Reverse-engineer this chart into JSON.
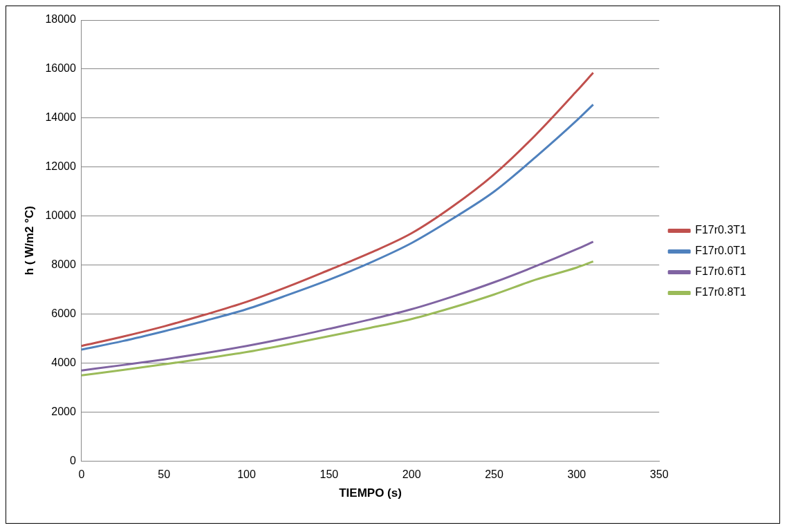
{
  "chart_data": {
    "type": "line",
    "xlabel": "TIEMPO (s)",
    "ylabel": "h ( W/m2 °C)",
    "x": [
      0,
      25,
      50,
      75,
      100,
      125,
      150,
      175,
      200,
      225,
      250,
      275,
      300,
      310
    ],
    "series": [
      {
        "name": "F17r0.3T1",
        "color": "#c0504d",
        "values": [
          4700,
          5080,
          5500,
          5980,
          6500,
          7120,
          7800,
          8500,
          9300,
          10400,
          11700,
          13300,
          15100,
          15850
        ]
      },
      {
        "name": "F17r0.0T1",
        "color": "#4f81bd",
        "values": [
          4550,
          4900,
          5300,
          5730,
          6200,
          6780,
          7400,
          8100,
          8900,
          9900,
          11000,
          12400,
          13900,
          14550
        ]
      },
      {
        "name": "F17r0.6T1",
        "color": "#8064a2",
        "values": [
          3700,
          3920,
          4150,
          4410,
          4700,
          5030,
          5400,
          5780,
          6200,
          6720,
          7300,
          7950,
          8650,
          8950
        ]
      },
      {
        "name": "F17r0.8T1",
        "color": "#9bbb59",
        "values": [
          3500,
          3720,
          3950,
          4190,
          4450,
          4760,
          5100,
          5440,
          5800,
          6270,
          6800,
          7400,
          7900,
          8150
        ]
      }
    ],
    "xlim": [
      0,
      350
    ],
    "xticks": [
      0,
      50,
      100,
      150,
      200,
      250,
      300,
      350
    ],
    "ylim": [
      0,
      18000
    ],
    "yticks": [
      0,
      2000,
      4000,
      6000,
      8000,
      10000,
      12000,
      14000,
      16000,
      18000
    ],
    "grid": "y",
    "legend": "right",
    "marker": "none",
    "line_style": "solid"
  }
}
